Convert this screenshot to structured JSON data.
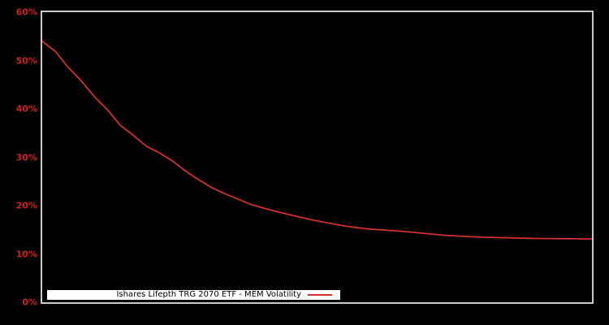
{
  "window": {
    "background": "#000000"
  },
  "chart": {
    "title": "",
    "legend": {
      "label": "Ishares Lifepth TRG 2070 ETF - MEM Volatility"
    },
    "colors": {
      "line": "#d32f2f",
      "axis_labels": "#cc2222",
      "plot_border": "#c9c9c9",
      "legend_bg": "#ffffff",
      "legend_text": "#000000",
      "background": "#000000"
    },
    "y_axis": {
      "ticks": [
        {
          "label": "0%",
          "value": 0
        },
        {
          "label": "10%",
          "value": 10
        },
        {
          "label": "20%",
          "value": 20
        },
        {
          "label": "30%",
          "value": 30
        },
        {
          "label": "40%",
          "value": 40
        },
        {
          "label": "50%",
          "value": 50
        },
        {
          "label": "60%",
          "value": 60
        }
      ]
    },
    "x_axis": {
      "ticks": []
    }
  },
  "chart_data": {
    "type": "line",
    "title": "",
    "xlabel": "",
    "ylabel": "",
    "ylim": [
      0,
      60
    ],
    "grid": false,
    "legend_position": "inside-bottom-left",
    "series": [
      {
        "name": "Ishares Lifepth TRG 2070 ETF - MEM Volatility",
        "color": "#d32f2f",
        "x_unit": "fraction-of-plot-width",
        "y_unit": "percent",
        "points": [
          [
            0.0,
            54.0
          ],
          [
            0.024,
            51.9
          ],
          [
            0.047,
            48.6
          ],
          [
            0.071,
            45.8
          ],
          [
            0.095,
            42.5
          ],
          [
            0.118,
            39.9
          ],
          [
            0.142,
            36.6
          ],
          [
            0.165,
            34.6
          ],
          [
            0.189,
            32.3
          ],
          [
            0.213,
            30.9
          ],
          [
            0.236,
            29.3
          ],
          [
            0.26,
            27.2
          ],
          [
            0.284,
            25.4
          ],
          [
            0.307,
            23.8
          ],
          [
            0.331,
            22.5
          ],
          [
            0.355,
            21.4
          ],
          [
            0.378,
            20.3
          ],
          [
            0.402,
            19.5
          ],
          [
            0.425,
            18.8
          ],
          [
            0.449,
            18.1
          ],
          [
            0.473,
            17.5
          ],
          [
            0.496,
            16.9
          ],
          [
            0.52,
            16.4
          ],
          [
            0.544,
            15.9
          ],
          [
            0.567,
            15.5
          ],
          [
            0.591,
            15.2
          ],
          [
            0.614,
            15.0
          ],
          [
            0.638,
            14.8
          ],
          [
            0.662,
            14.6
          ],
          [
            0.685,
            14.35
          ],
          [
            0.709,
            14.1
          ],
          [
            0.733,
            13.85
          ],
          [
            0.756,
            13.7
          ],
          [
            0.78,
            13.55
          ],
          [
            0.804,
            13.45
          ],
          [
            0.827,
            13.38
          ],
          [
            0.851,
            13.32
          ],
          [
            0.874,
            13.25
          ],
          [
            0.898,
            13.2
          ],
          [
            0.922,
            13.17
          ],
          [
            0.945,
            13.14
          ],
          [
            0.969,
            13.12
          ],
          [
            1.0,
            13.1
          ]
        ]
      }
    ]
  }
}
